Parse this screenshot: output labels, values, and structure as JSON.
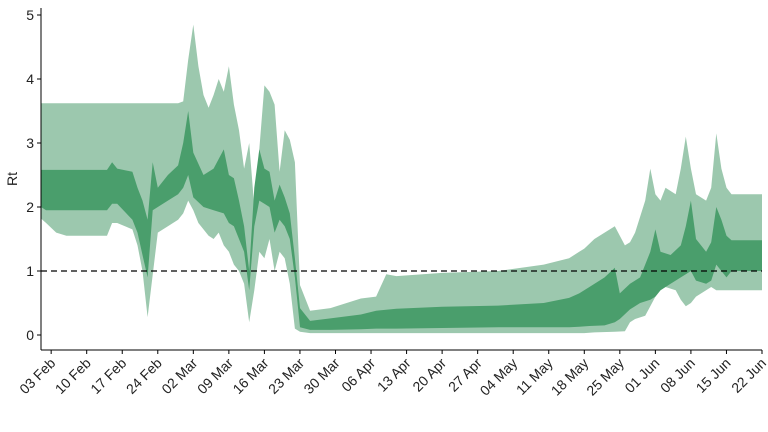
{
  "chart_data": {
    "type": "area",
    "title": "",
    "xlabel": "",
    "ylabel": "Rt",
    "ylim": [
      0,
      5
    ],
    "xlim": [
      "2020-02-01",
      "2020-06-22"
    ],
    "x_ticks": [
      {
        "date": "2020-02-03",
        "label": "03 Feb"
      },
      {
        "date": "2020-02-10",
        "label": "10 Feb"
      },
      {
        "date": "2020-02-17",
        "label": "17 Feb"
      },
      {
        "date": "2020-02-24",
        "label": "24 Feb"
      },
      {
        "date": "2020-03-02",
        "label": "02 Mar"
      },
      {
        "date": "2020-03-09",
        "label": "09 Mar"
      },
      {
        "date": "2020-03-16",
        "label": "16 Mar"
      },
      {
        "date": "2020-03-23",
        "label": "23 Mar"
      },
      {
        "date": "2020-03-30",
        "label": "30 Mar"
      },
      {
        "date": "2020-04-06",
        "label": "06 Apr"
      },
      {
        "date": "2020-04-13",
        "label": "13 Apr"
      },
      {
        "date": "2020-04-20",
        "label": "20 Apr"
      },
      {
        "date": "2020-04-27",
        "label": "27 Apr"
      },
      {
        "date": "2020-05-04",
        "label": "04 May"
      },
      {
        "date": "2020-05-11",
        "label": "11 May"
      },
      {
        "date": "2020-05-18",
        "label": "18 May"
      },
      {
        "date": "2020-05-25",
        "label": "25 May"
      },
      {
        "date": "2020-06-01",
        "label": "01 Jun"
      },
      {
        "date": "2020-06-08",
        "label": "08 Jun"
      },
      {
        "date": "2020-06-15",
        "label": "15 Jun"
      },
      {
        "date": "2020-06-22",
        "label": "22 Jun"
      }
    ],
    "y_ticks": [
      0,
      1,
      2,
      3,
      4,
      5
    ],
    "reference_line": {
      "y": 1,
      "style": "dashed"
    },
    "grid": false,
    "colors": {
      "outer_band": "#9cc8ae",
      "inner_band": "#4a9e6c"
    },
    "series": [
      {
        "band": "outer",
        "x": [
          "2020-02-01",
          "2020-02-02",
          "2020-02-04",
          "2020-02-06",
          "2020-02-13",
          "2020-02-14",
          "2020-02-15",
          "2020-02-16",
          "2020-02-19",
          "2020-02-20",
          "2020-02-21",
          "2020-02-22",
          "2020-02-24",
          "2020-02-26",
          "2020-02-27",
          "2020-02-28",
          "2020-02-29",
          "2020-03-01",
          "2020-03-02",
          "2020-03-03",
          "2020-03-04",
          "2020-03-05",
          "2020-03-06",
          "2020-03-07",
          "2020-03-08",
          "2020-03-09",
          "2020-03-10",
          "2020-03-11",
          "2020-03-12",
          "2020-03-13",
          "2020-03-14",
          "2020-03-15",
          "2020-03-16",
          "2020-03-17",
          "2020-03-18",
          "2020-03-19",
          "2020-03-20",
          "2020-03-21",
          "2020-03-22",
          "2020-03-23",
          "2020-03-25",
          "2020-03-29",
          "2020-04-04",
          "2020-04-07",
          "2020-04-09",
          "2020-04-11",
          "2020-04-20",
          "2020-05-01",
          "2020-05-10",
          "2020-05-15",
          "2020-05-17",
          "2020-05-18",
          "2020-05-20",
          "2020-05-24",
          "2020-05-26",
          "2020-05-27",
          "2020-05-28",
          "2020-05-30",
          "2020-05-31",
          "2020-06-01",
          "2020-06-02",
          "2020-06-03",
          "2020-06-05",
          "2020-06-06",
          "2020-06-07",
          "2020-06-08",
          "2020-06-09",
          "2020-06-11",
          "2020-06-12",
          "2020-06-13",
          "2020-06-14",
          "2020-06-15",
          "2020-06-16",
          "2020-06-18",
          "2020-06-22"
        ],
        "upper": [
          3.62,
          3.62,
          3.62,
          3.62,
          3.62,
          3.62,
          3.62,
          3.62,
          3.62,
          3.62,
          3.62,
          3.62,
          3.62,
          3.62,
          3.62,
          3.62,
          3.65,
          4.3,
          4.85,
          4.2,
          3.75,
          3.55,
          3.75,
          4.0,
          3.8,
          4.2,
          3.6,
          3.2,
          2.6,
          3.0,
          2.0,
          2.9,
          3.9,
          3.8,
          3.6,
          2.55,
          3.2,
          3.05,
          2.7,
          0.78,
          0.38,
          0.42,
          0.57,
          0.6,
          0.95,
          0.92,
          0.97,
          1.0,
          1.1,
          1.2,
          1.3,
          1.35,
          1.5,
          1.7,
          1.4,
          1.45,
          1.6,
          2.1,
          2.6,
          2.2,
          2.1,
          2.3,
          2.2,
          2.6,
          3.1,
          2.6,
          2.2,
          2.1,
          2.3,
          3.15,
          2.6,
          2.3,
          2.2,
          2.2,
          2.2
        ],
        "lower": [
          1.82,
          1.75,
          1.6,
          1.55,
          1.55,
          1.55,
          1.75,
          1.75,
          1.65,
          1.4,
          1.0,
          0.28,
          1.6,
          1.7,
          1.75,
          1.8,
          1.9,
          2.1,
          1.95,
          1.75,
          1.65,
          1.55,
          1.5,
          1.6,
          1.4,
          1.3,
          1.1,
          1.0,
          0.8,
          0.2,
          0.7,
          1.3,
          1.2,
          1.5,
          1.0,
          1.3,
          1.2,
          0.8,
          0.1,
          0.05,
          0.03,
          0.03,
          0.03,
          0.03,
          0.03,
          0.03,
          0.03,
          0.03,
          0.03,
          0.03,
          0.03,
          0.03,
          0.04,
          0.05,
          0.06,
          0.2,
          0.25,
          0.3,
          0.45,
          0.6,
          0.7,
          0.75,
          0.7,
          0.55,
          0.45,
          0.5,
          0.6,
          0.7,
          0.75,
          0.7,
          0.7,
          0.7,
          0.7,
          0.7,
          0.7
        ]
      },
      {
        "band": "inner",
        "x": [
          "2020-02-01",
          "2020-02-02",
          "2020-02-13",
          "2020-02-14",
          "2020-02-15",
          "2020-02-16",
          "2020-02-19",
          "2020-02-20",
          "2020-02-21",
          "2020-02-22",
          "2020-02-23",
          "2020-02-24",
          "2020-02-26",
          "2020-02-28",
          "2020-02-29",
          "2020-03-01",
          "2020-03-02",
          "2020-03-04",
          "2020-03-06",
          "2020-03-08",
          "2020-03-09",
          "2020-03-10",
          "2020-03-11",
          "2020-03-12",
          "2020-03-13",
          "2020-03-14",
          "2020-03-15",
          "2020-03-16",
          "2020-03-17",
          "2020-03-18",
          "2020-03-19",
          "2020-03-20",
          "2020-03-21",
          "2020-03-22",
          "2020-03-23",
          "2020-03-25",
          "2020-03-29",
          "2020-04-04",
          "2020-04-07",
          "2020-04-11",
          "2020-04-20",
          "2020-05-01",
          "2020-05-10",
          "2020-05-15",
          "2020-05-17",
          "2020-05-19",
          "2020-05-22",
          "2020-05-24",
          "2020-05-25",
          "2020-05-27",
          "2020-05-29",
          "2020-05-31",
          "2020-06-01",
          "2020-06-02",
          "2020-06-04",
          "2020-06-06",
          "2020-06-07",
          "2020-06-08",
          "2020-06-09",
          "2020-06-11",
          "2020-06-12",
          "2020-06-13",
          "2020-06-14",
          "2020-06-15",
          "2020-06-16",
          "2020-06-22"
        ],
        "upper": [
          2.58,
          2.58,
          2.58,
          2.58,
          2.7,
          2.6,
          2.55,
          2.3,
          2.1,
          1.8,
          2.7,
          2.3,
          2.5,
          2.65,
          3.0,
          3.5,
          2.85,
          2.5,
          2.6,
          2.9,
          2.5,
          2.45,
          2.1,
          1.7,
          1.0,
          2.3,
          2.9,
          2.6,
          2.55,
          2.1,
          2.35,
          2.15,
          1.9,
          1.2,
          0.42,
          0.22,
          0.26,
          0.32,
          0.38,
          0.41,
          0.44,
          0.46,
          0.5,
          0.58,
          0.65,
          0.75,
          0.9,
          1.05,
          0.65,
          0.8,
          0.9,
          1.3,
          1.65,
          1.3,
          1.25,
          1.4,
          1.7,
          2.1,
          1.5,
          1.3,
          1.45,
          2.0,
          1.8,
          1.55,
          1.48,
          1.48
        ],
        "lower": [
          2.0,
          1.95,
          1.95,
          1.95,
          2.05,
          2.05,
          1.8,
          1.6,
          1.25,
          0.9,
          1.95,
          2.0,
          2.1,
          2.2,
          2.3,
          2.5,
          2.15,
          2.0,
          1.95,
          1.9,
          1.75,
          1.7,
          1.5,
          1.3,
          0.7,
          1.7,
          2.1,
          2.05,
          2.0,
          1.6,
          1.8,
          1.7,
          1.5,
          0.9,
          0.12,
          0.08,
          0.08,
          0.09,
          0.1,
          0.1,
          0.11,
          0.12,
          0.12,
          0.12,
          0.13,
          0.14,
          0.15,
          0.2,
          0.25,
          0.4,
          0.5,
          0.55,
          0.6,
          0.7,
          0.8,
          0.9,
          0.95,
          1.0,
          0.85,
          0.8,
          0.85,
          1.1,
          1.0,
          0.9,
          1.0,
          1.0
        ]
      }
    ]
  }
}
